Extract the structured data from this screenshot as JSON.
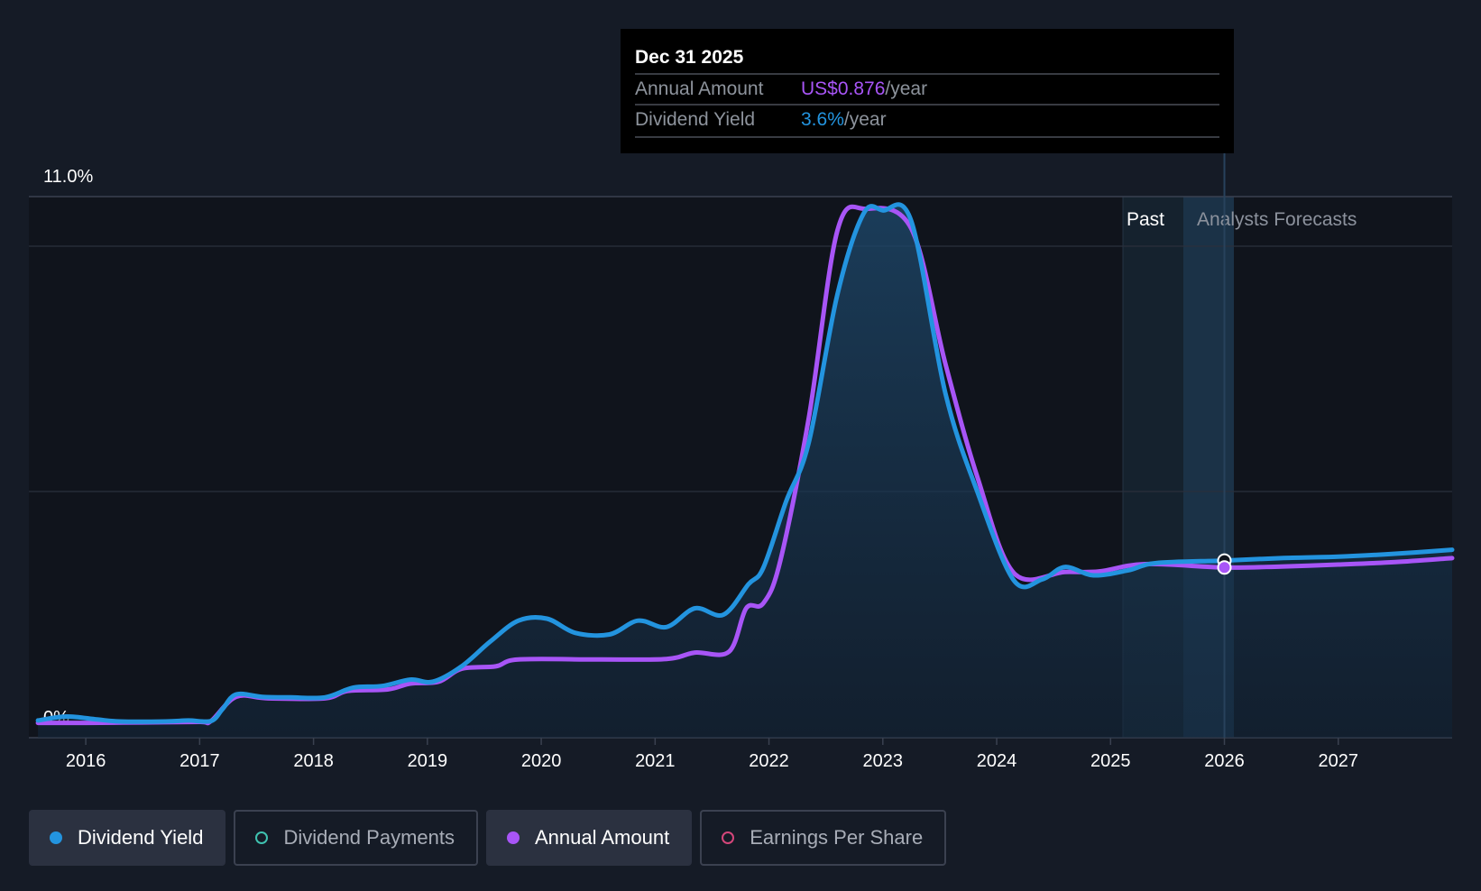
{
  "tooltip": {
    "date": "Dec 31 2025",
    "rows": [
      {
        "label": "Annual Amount",
        "value": "US$0.876",
        "unit": "/year",
        "color": "#a855f7"
      },
      {
        "label": "Dividend Yield",
        "value": "3.6%",
        "unit": "/year",
        "color": "#2394df"
      }
    ]
  },
  "regions": {
    "past": "Past",
    "forecast": "Analysts Forecasts"
  },
  "legend": [
    {
      "label": "Dividend Yield",
      "color": "#2394df",
      "active": true
    },
    {
      "label": "Dividend Payments",
      "color": "#3fc2b0",
      "active": false
    },
    {
      "label": "Annual Amount",
      "color": "#a855f7",
      "active": true
    },
    {
      "label": "Earnings Per Share",
      "color": "#d4467a",
      "active": false
    }
  ],
  "chart_data": {
    "type": "area",
    "ylim": [
      0,
      11
    ],
    "xlim": [
      2015.5,
      2028.0
    ],
    "y_tick_labels": [
      {
        "value": 11,
        "label": "11.0%"
      },
      {
        "value": 0,
        "label": "0%"
      }
    ],
    "x_ticks": [
      2016,
      2017,
      2018,
      2019,
      2020,
      2021,
      2022,
      2023,
      2024,
      2025,
      2026,
      2027
    ],
    "grid": true,
    "past_end": 2025.0,
    "forecast_start": 2025.55,
    "marker_x": 2026.0,
    "series": [
      {
        "name": "Dividend Yield",
        "color": "#2394df",
        "fill": true,
        "points": [
          [
            2015.58,
            0.35
          ],
          [
            2015.83,
            0.43
          ],
          [
            2016.1,
            0.37
          ],
          [
            2016.3,
            0.33
          ],
          [
            2016.7,
            0.33
          ],
          [
            2016.9,
            0.35
          ],
          [
            2017.1,
            0.34
          ],
          [
            2017.2,
            0.58
          ],
          [
            2017.32,
            0.88
          ],
          [
            2017.55,
            0.83
          ],
          [
            2017.8,
            0.82
          ],
          [
            2018.1,
            0.82
          ],
          [
            2018.35,
            1.02
          ],
          [
            2018.6,
            1.05
          ],
          [
            2018.85,
            1.18
          ],
          [
            2019.05,
            1.14
          ],
          [
            2019.3,
            1.45
          ],
          [
            2019.55,
            1.95
          ],
          [
            2019.8,
            2.38
          ],
          [
            2020.05,
            2.42
          ],
          [
            2020.3,
            2.13
          ],
          [
            2020.6,
            2.1
          ],
          [
            2020.85,
            2.38
          ],
          [
            2021.1,
            2.25
          ],
          [
            2021.35,
            2.63
          ],
          [
            2021.6,
            2.5
          ],
          [
            2021.82,
            3.12
          ],
          [
            2021.95,
            3.45
          ],
          [
            2022.15,
            4.8
          ],
          [
            2022.35,
            6.0
          ],
          [
            2022.6,
            9.0
          ],
          [
            2022.83,
            10.65
          ],
          [
            2023.0,
            10.72
          ],
          [
            2023.25,
            10.5
          ],
          [
            2023.55,
            7.0
          ],
          [
            2023.83,
            5.0
          ],
          [
            2024.15,
            3.2
          ],
          [
            2024.4,
            3.22
          ],
          [
            2024.6,
            3.47
          ],
          [
            2024.85,
            3.3
          ],
          [
            2025.15,
            3.4
          ],
          [
            2025.4,
            3.55
          ],
          [
            2026.0,
            3.6
          ],
          [
            2026.5,
            3.65
          ],
          [
            2027.0,
            3.68
          ],
          [
            2027.5,
            3.74
          ],
          [
            2028.0,
            3.82
          ]
        ]
      },
      {
        "name": "Annual Amount",
        "color": "#a855f7",
        "fill": false,
        "points": [
          [
            2015.58,
            0.3
          ],
          [
            2016.0,
            0.3
          ],
          [
            2016.5,
            0.31
          ],
          [
            2017.0,
            0.32
          ],
          [
            2017.1,
            0.34
          ],
          [
            2017.32,
            0.83
          ],
          [
            2017.6,
            0.8
          ],
          [
            2018.1,
            0.8
          ],
          [
            2018.3,
            0.95
          ],
          [
            2018.65,
            0.98
          ],
          [
            2018.85,
            1.1
          ],
          [
            2019.1,
            1.14
          ],
          [
            2019.3,
            1.4
          ],
          [
            2019.6,
            1.45
          ],
          [
            2019.8,
            1.59
          ],
          [
            2020.5,
            1.59
          ],
          [
            2021.1,
            1.6
          ],
          [
            2021.35,
            1.73
          ],
          [
            2021.65,
            1.75
          ],
          [
            2021.8,
            2.63
          ],
          [
            2021.95,
            2.73
          ],
          [
            2022.1,
            3.6
          ],
          [
            2022.35,
            6.5
          ],
          [
            2022.6,
            10.3
          ],
          [
            2022.85,
            10.75
          ],
          [
            2023.25,
            10.35
          ],
          [
            2023.55,
            7.6
          ],
          [
            2023.83,
            5.3
          ],
          [
            2024.15,
            3.35
          ],
          [
            2024.6,
            3.37
          ],
          [
            2024.9,
            3.38
          ],
          [
            2025.3,
            3.53
          ],
          [
            2026.0,
            3.46
          ],
          [
            2026.5,
            3.48
          ],
          [
            2027.0,
            3.52
          ],
          [
            2027.5,
            3.57
          ],
          [
            2028.0,
            3.65
          ]
        ]
      }
    ]
  }
}
